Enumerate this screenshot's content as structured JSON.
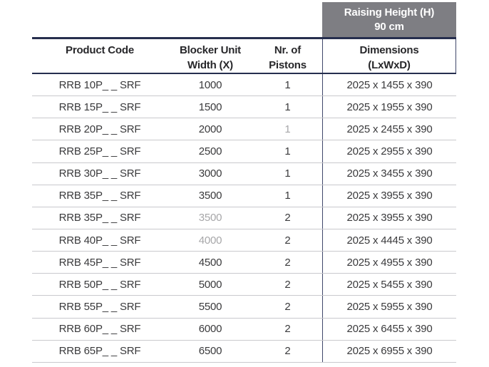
{
  "header": {
    "raising_height_label": "Raising Height (H)",
    "raising_height_value": "90 cm"
  },
  "table": {
    "headers": [
      {
        "lines": [
          "Product Code",
          ""
        ]
      },
      {
        "lines": [
          "Blocker Unit",
          "Width (X)"
        ]
      },
      {
        "lines": [
          "Nr. of",
          "Pistons"
        ]
      },
      {
        "lines": [
          "Dimensions",
          "(LxWxD)"
        ]
      }
    ],
    "rows": [
      {
        "product_code": "RRB 10P_ _ SRF",
        "width": "1000",
        "pistons": "1",
        "dimensions": "2025 x 1455 x 390",
        "faded": []
      },
      {
        "product_code": "RRB 15P_ _ SRF",
        "width": "1500",
        "pistons": "1",
        "dimensions": "2025 x 1955 x 390",
        "faded": []
      },
      {
        "product_code": "RRB 20P_ _ SRF",
        "width": "2000",
        "pistons": "1",
        "dimensions": "2025 x 2455 x 390",
        "faded": [
          "pistons"
        ]
      },
      {
        "product_code": "RRB 25P_ _ SRF",
        "width": "2500",
        "pistons": "1",
        "dimensions": "2025 x 2955 x 390",
        "faded": []
      },
      {
        "product_code": "RRB 30P_ _ SRF",
        "width": "3000",
        "pistons": "1",
        "dimensions": "2025 x 3455 x 390",
        "faded": []
      },
      {
        "product_code": "RRB 35P_ _ SRF",
        "width": "3500",
        "pistons": "1",
        "dimensions": "2025 x 3955 x 390",
        "faded": []
      },
      {
        "product_code": "RRB 35P_ _ SRF",
        "width": "3500",
        "pistons": "2",
        "dimensions": "2025 x 3955 x 390",
        "faded": [
          "width"
        ]
      },
      {
        "product_code": "RRB 40P_ _ SRF",
        "width": "4000",
        "pistons": "2",
        "dimensions": "2025 x 4445 x 390",
        "faded": [
          "width"
        ]
      },
      {
        "product_code": "RRB 45P_ _ SRF",
        "width": "4500",
        "pistons": "2",
        "dimensions": "2025 x 4955 x 390",
        "faded": []
      },
      {
        "product_code": "RRB 50P_ _ SRF",
        "width": "5000",
        "pistons": "2",
        "dimensions": "2025 x 5455 x 390",
        "faded": []
      },
      {
        "product_code": "RRB 55P_ _ SRF",
        "width": "5500",
        "pistons": "2",
        "dimensions": "2025 x 5955 x 390",
        "faded": []
      },
      {
        "product_code": "RRB 60P_ _ SRF",
        "width": "6000",
        "pistons": "2",
        "dimensions": "2025 x 6455 x 390",
        "faded": []
      },
      {
        "product_code": "RRB 65P_ _ SRF",
        "width": "6500",
        "pistons": "2",
        "dimensions": "2025 x 6955 x 390",
        "faded": []
      }
    ]
  },
  "colors": {
    "accent_navy": "#262e4e",
    "header_gray": "#7e7e83",
    "row_divider": "#c9c9cd",
    "column_rule": "#40476a",
    "text": "#3a3a3c",
    "faded_text": "#a7a7a9",
    "header_text_on_gray": "#ffffff"
  }
}
